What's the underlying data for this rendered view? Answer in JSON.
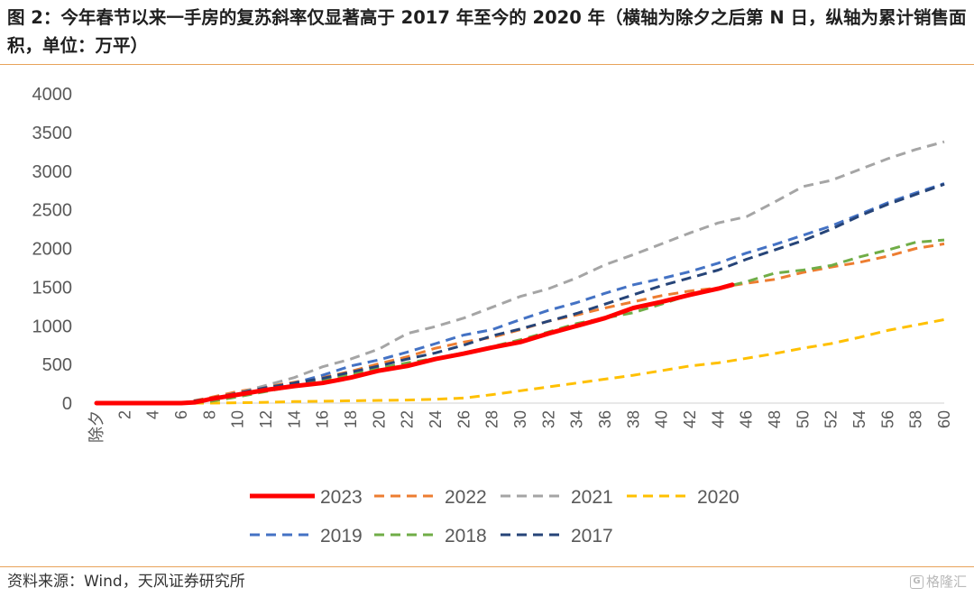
{
  "title": "图 2：今年春节以来一手房的复苏斜率仅显著高于 2017 年至今的 2020 年（横轴为除夕之后第 N 日，纵轴为累计销售面积，单位：万平）",
  "source": "资料来源：Wind，天风证券研究所",
  "watermark": "格隆汇",
  "watermark_glyph": "G",
  "chart_data": {
    "type": "line",
    "xlabel": "",
    "ylabel": "",
    "ylim": [
      0,
      4000
    ],
    "y_ticks": [
      0,
      500,
      1000,
      1500,
      2000,
      2500,
      3000,
      3500,
      4000
    ],
    "x_categories": [
      "除夕",
      "2",
      "4",
      "6",
      "8",
      "10",
      "12",
      "14",
      "16",
      "18",
      "20",
      "22",
      "24",
      "26",
      "28",
      "30",
      "32",
      "34",
      "36",
      "38",
      "40",
      "42",
      "44",
      "46",
      "48",
      "50",
      "52",
      "54",
      "56",
      "58",
      "60"
    ],
    "x_values": [
      0,
      2,
      4,
      6,
      8,
      10,
      12,
      14,
      16,
      18,
      20,
      22,
      24,
      26,
      28,
      30,
      32,
      34,
      36,
      38,
      40,
      42,
      44,
      46,
      48,
      50,
      52,
      54,
      56,
      58,
      60
    ],
    "grid": false,
    "legend_position": "bottom",
    "series": [
      {
        "name": "2023",
        "color": "#ff0000",
        "dash": "solid",
        "width": 5,
        "x": [
          0,
          2,
          4,
          6,
          7,
          8,
          10,
          12,
          14,
          16,
          18,
          20,
          22,
          24,
          26,
          28,
          30,
          32,
          34,
          36,
          38,
          40,
          42,
          44,
          45
        ],
        "values": [
          0,
          0,
          0,
          0,
          10,
          50,
          110,
          170,
          220,
          260,
          330,
          420,
          480,
          570,
          640,
          720,
          790,
          900,
          1000,
          1100,
          1230,
          1310,
          1400,
          1480,
          1530
        ]
      },
      {
        "name": "2022",
        "color": "#ed7d31",
        "dash": "dashed",
        "width": 3,
        "x": [
          0,
          2,
          4,
          6,
          8,
          10,
          12,
          14,
          16,
          18,
          20,
          22,
          24,
          26,
          28,
          30,
          32,
          34,
          36,
          38,
          40,
          42,
          44,
          46,
          48,
          50,
          52,
          54,
          56,
          58,
          60
        ],
        "values": [
          0,
          0,
          0,
          0,
          70,
          150,
          210,
          270,
          330,
          410,
          510,
          600,
          710,
          790,
          850,
          950,
          1060,
          1140,
          1230,
          1310,
          1390,
          1450,
          1490,
          1550,
          1600,
          1690,
          1760,
          1820,
          1900,
          2000,
          2060
        ]
      },
      {
        "name": "2021",
        "color": "#a5a5a5",
        "dash": "dashed",
        "width": 3,
        "x": [
          0,
          2,
          4,
          6,
          8,
          10,
          12,
          14,
          16,
          18,
          20,
          22,
          24,
          26,
          28,
          30,
          32,
          34,
          36,
          38,
          40,
          42,
          44,
          46,
          48,
          50,
          52,
          54,
          56,
          58,
          60
        ],
        "values": [
          0,
          0,
          0,
          0,
          50,
          130,
          230,
          330,
          470,
          570,
          700,
          900,
          990,
          1100,
          1240,
          1380,
          1480,
          1620,
          1790,
          1920,
          2060,
          2200,
          2330,
          2410,
          2600,
          2800,
          2880,
          3020,
          3160,
          3280,
          3380
        ]
      },
      {
        "name": "2020",
        "color": "#ffc000",
        "dash": "dashed",
        "width": 3,
        "x": [
          0,
          2,
          4,
          6,
          8,
          10,
          12,
          14,
          16,
          18,
          20,
          22,
          24,
          26,
          28,
          30,
          32,
          34,
          36,
          38,
          40,
          42,
          44,
          46,
          48,
          50,
          52,
          54,
          56,
          58,
          60
        ],
        "values": [
          0,
          0,
          0,
          0,
          0,
          5,
          10,
          20,
          25,
          30,
          35,
          40,
          50,
          65,
          110,
          160,
          210,
          260,
          310,
          360,
          420,
          480,
          520,
          580,
          640,
          710,
          770,
          850,
          940,
          1010,
          1080
        ]
      },
      {
        "name": "2019",
        "color": "#4472c4",
        "dash": "dashed",
        "width": 3,
        "x": [
          0,
          2,
          4,
          6,
          8,
          10,
          12,
          14,
          16,
          18,
          20,
          22,
          24,
          26,
          28,
          30,
          32,
          34,
          36,
          38,
          40,
          42,
          44,
          46,
          48,
          50,
          52,
          54,
          56,
          58,
          60
        ],
        "values": [
          0,
          0,
          0,
          0,
          40,
          120,
          190,
          260,
          360,
          480,
          560,
          660,
          770,
          880,
          950,
          1080,
          1200,
          1300,
          1420,
          1530,
          1610,
          1700,
          1810,
          1940,
          2050,
          2170,
          2290,
          2440,
          2590,
          2720,
          2840
        ]
      },
      {
        "name": "2018",
        "color": "#70ad47",
        "dash": "dashed",
        "width": 3,
        "x": [
          0,
          2,
          4,
          6,
          8,
          10,
          12,
          14,
          16,
          18,
          20,
          22,
          24,
          26,
          28,
          30,
          32,
          34,
          36,
          38,
          40,
          42,
          44,
          46,
          48,
          50,
          52,
          54,
          56,
          58,
          60
        ],
        "values": [
          0,
          0,
          0,
          0,
          20,
          80,
          150,
          220,
          300,
          370,
          450,
          520,
          580,
          650,
          730,
          820,
          920,
          1030,
          1100,
          1170,
          1280,
          1400,
          1480,
          1570,
          1680,
          1720,
          1780,
          1890,
          1980,
          2080,
          2110
        ]
      },
      {
        "name": "2017",
        "color": "#264478",
        "dash": "dashed",
        "width": 3,
        "x": [
          0,
          2,
          4,
          6,
          8,
          10,
          12,
          14,
          16,
          18,
          20,
          22,
          24,
          26,
          28,
          30,
          32,
          34,
          36,
          38,
          40,
          42,
          44,
          46,
          48,
          50,
          52,
          54,
          56,
          58,
          60
        ],
        "values": [
          0,
          0,
          0,
          0,
          60,
          130,
          200,
          260,
          320,
          400,
          480,
          570,
          650,
          750,
          870,
          960,
          1060,
          1160,
          1280,
          1400,
          1520,
          1620,
          1720,
          1860,
          1980,
          2100,
          2250,
          2420,
          2570,
          2700,
          2830
        ]
      }
    ],
    "legend_rows": [
      [
        "2023",
        "2022",
        "2021",
        "2020"
      ],
      [
        "2019",
        "2018",
        "2017"
      ]
    ]
  }
}
